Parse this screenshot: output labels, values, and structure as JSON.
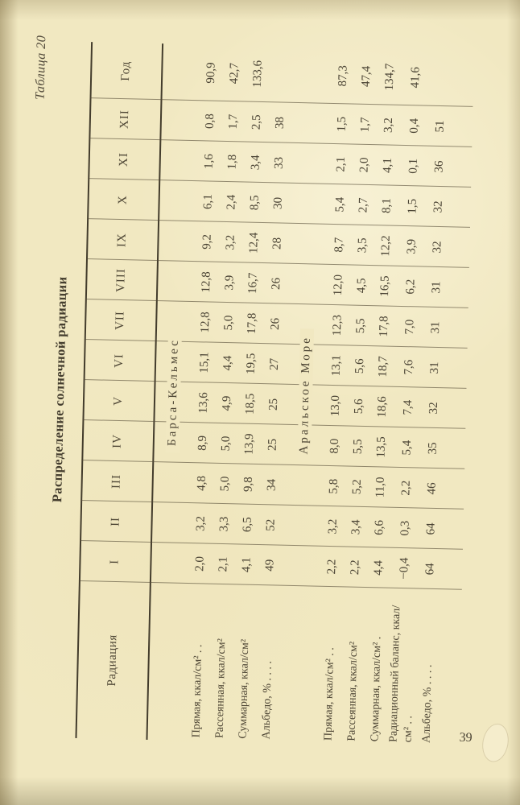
{
  "page": {
    "caption": "Таблица 20",
    "title": "Распределение солнечной радиации",
    "number": "39"
  },
  "table": {
    "header": {
      "label_col": "Радиация",
      "months": [
        "I",
        "II",
        "III",
        "IV",
        "V",
        "VI",
        "VII",
        "VIII",
        "IX",
        "X",
        "XI",
        "XII"
      ],
      "year_col": "Год"
    },
    "sections": [
      {
        "name": "Барса-Кельмес",
        "rows": [
          {
            "label": "Прямая, ккал/см² . .",
            "values": [
              "2,0",
              "3,2",
              "4,8",
              "8,9",
              "13,6",
              "15,1",
              "12,8",
              "12,8",
              "9,2",
              "6,1",
              "1,6",
              "0,8"
            ],
            "year": "90,9"
          },
          {
            "label": "Рассеянная, ккал/см²",
            "values": [
              "2,1",
              "3,3",
              "5,0",
              "5,0",
              "4,9",
              "4,4",
              "5,0",
              "3,9",
              "3,2",
              "2,4",
              "1,8",
              "1,7"
            ],
            "year": "42,7"
          },
          {
            "label": "Суммарная, ккал/см²",
            "values": [
              "4,1",
              "6,5",
              "9,8",
              "13,9",
              "18,5",
              "19,5",
              "17,8",
              "16,7",
              "12,4",
              "8,5",
              "3,4",
              "2,5"
            ],
            "year": "133,6"
          },
          {
            "label": "Альбедо, % . . . .",
            "values": [
              "49",
              "52",
              "34",
              "25",
              "25",
              "27",
              "26",
              "26",
              "28",
              "30",
              "33",
              "38"
            ],
            "year": ""
          }
        ]
      },
      {
        "name": "Аральское Море",
        "rows": [
          {
            "label": "Прямая, ккал/см² . .",
            "values": [
              "2,2",
              "3,2",
              "5,8",
              "8,0",
              "13,0",
              "13,1",
              "12,3",
              "12,0",
              "8,7",
              "5,4",
              "2,1",
              "1,5"
            ],
            "year": "87,3"
          },
          {
            "label": "Рассеянная, ккал/см²",
            "values": [
              "2,2",
              "3,4",
              "5,2",
              "5,5",
              "5,6",
              "5,6",
              "5,5",
              "4,5",
              "3,5",
              "2,7",
              "2,0",
              "1,7"
            ],
            "year": "47,4"
          },
          {
            "label": "Суммарная, ккал/см² .",
            "values": [
              "4,4",
              "6,6",
              "11,0",
              "13,5",
              "18,6",
              "18,7",
              "17,8",
              "16,5",
              "12,2",
              "8,1",
              "4,1",
              "3,2"
            ],
            "year": "134,7"
          },
          {
            "label": "Радиационный баланс, ккал/см² . .",
            "values": [
              "−0,4",
              "0,3",
              "2,2",
              "5,4",
              "7,4",
              "7,6",
              "7,0",
              "6,2",
              "3,9",
              "1,5",
              "0,1",
              "0,4"
            ],
            "year": "41,6"
          },
          {
            "label": "Альбедо, % . . . .",
            "values": [
              "64",
              "64",
              "46",
              "35",
              "32",
              "31",
              "31",
              "31",
              "32",
              "32",
              "36",
              "51"
            ],
            "year": ""
          }
        ]
      }
    ]
  },
  "colors": {
    "paper": "#f1e8c1",
    "ink": "#4a4334",
    "heavy_rule": "#433c2c",
    "thin_rule": "#564c37"
  }
}
